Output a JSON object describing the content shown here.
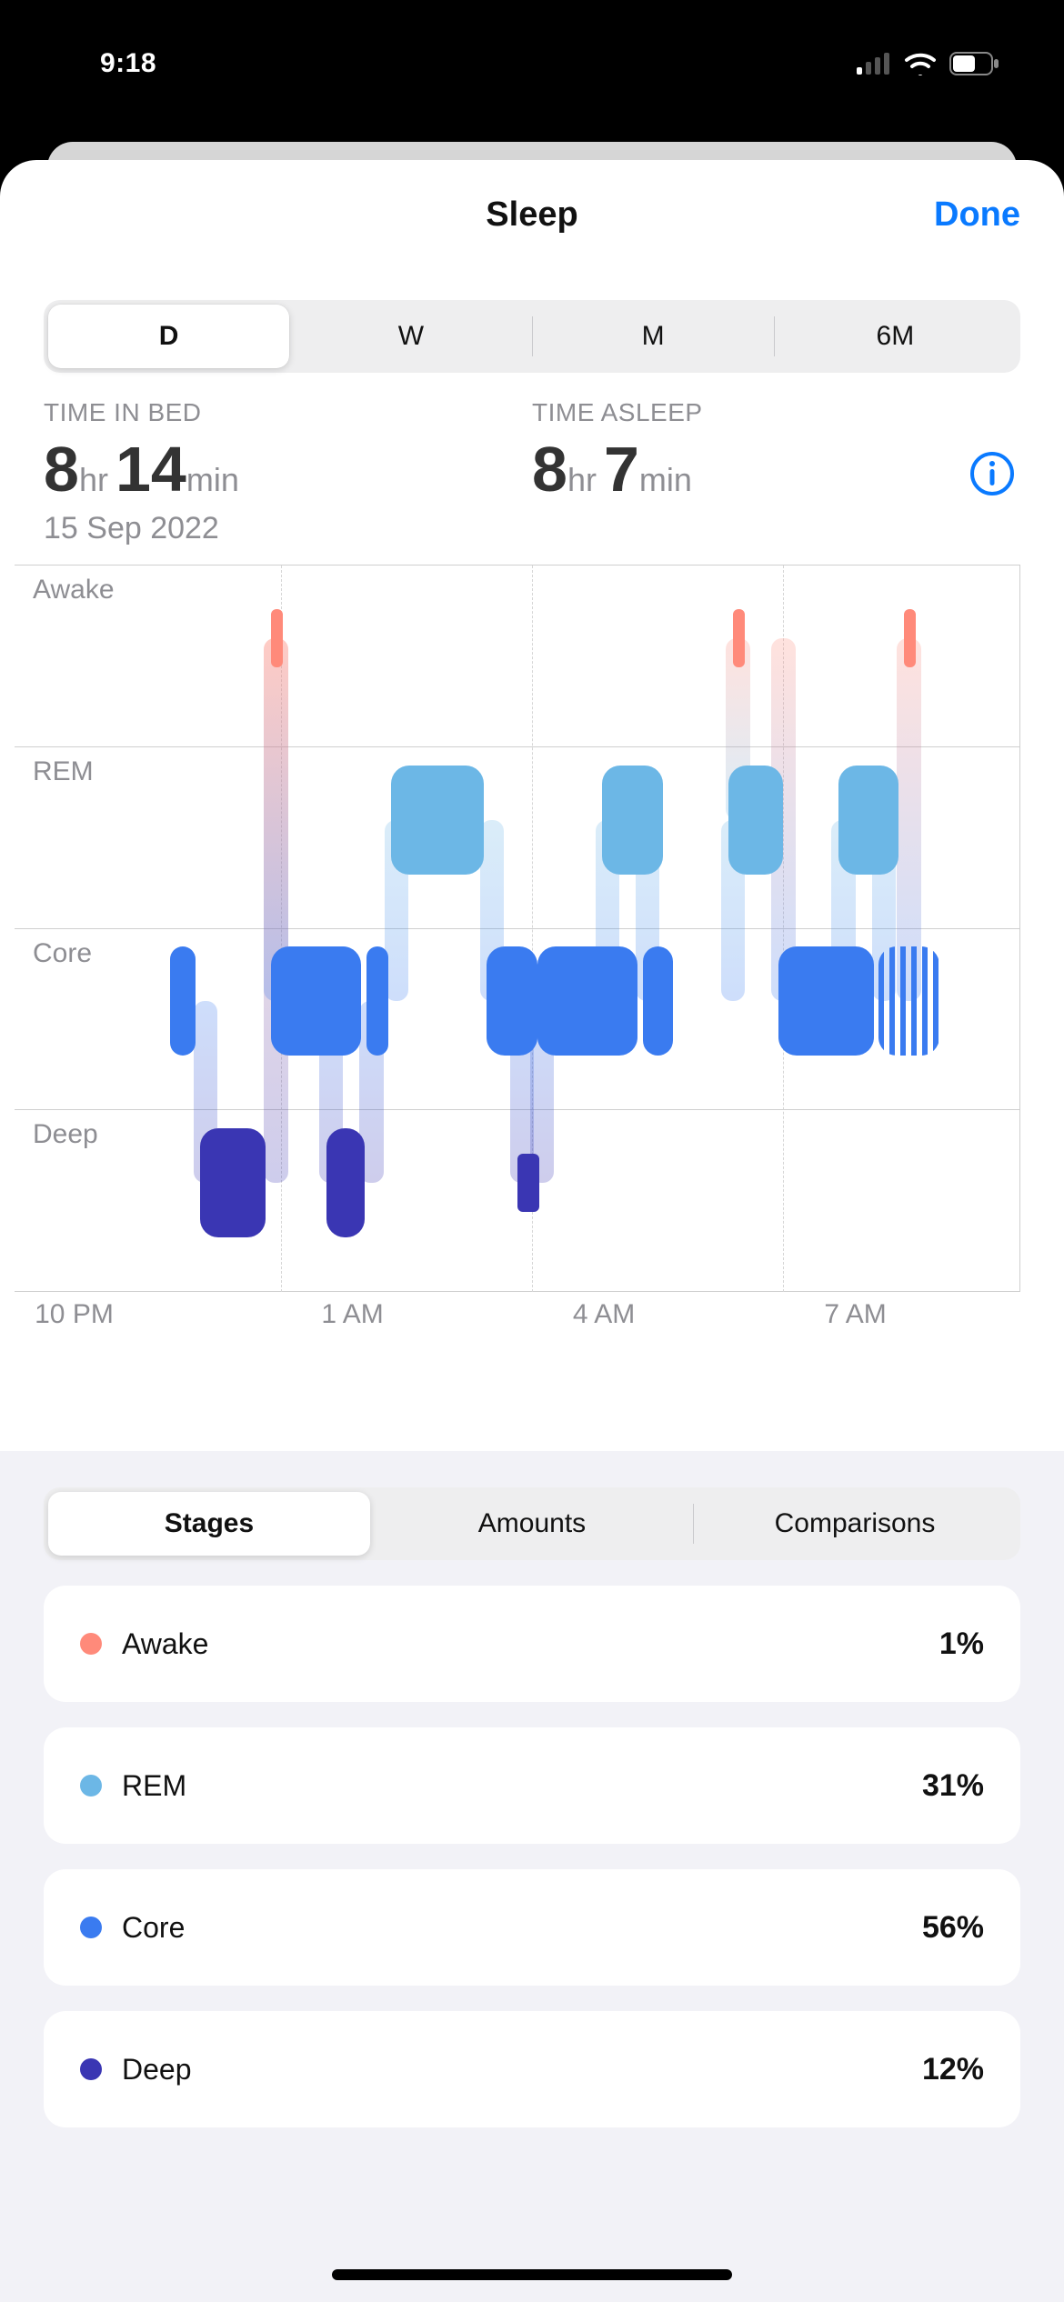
{
  "status": {
    "time": "9:18"
  },
  "header": {
    "title": "Sleep",
    "done": "Done"
  },
  "range_segment": {
    "options": [
      "D",
      "W",
      "M",
      "6M"
    ],
    "selected_index": 0
  },
  "summary": {
    "in_bed": {
      "label": "TIME IN BED",
      "hours": "8",
      "hr_unit": "hr",
      "minutes": "14",
      "min_unit": "min"
    },
    "asleep": {
      "label": "TIME ASLEEP",
      "hours": "8",
      "hr_unit": "hr",
      "minutes": "7",
      "min_unit": "min"
    },
    "date": "15 Sep 2022"
  },
  "chart": {
    "stage_labels": [
      "Awake",
      "REM",
      "Core",
      "Deep"
    ],
    "x_ticks": [
      {
        "label": "10 PM",
        "pos_pct": 2.0
      },
      {
        "label": "1 AM",
        "pos_pct": 30.5
      },
      {
        "label": "4 AM",
        "pos_pct": 55.5
      },
      {
        "label": "7 AM",
        "pos_pct": 80.5
      }
    ],
    "x_gridlines_pct": [
      26.5,
      51.5,
      76.5
    ],
    "colors": {
      "awake": "#ff8a7a",
      "rem": "#6cb7e6",
      "core": "#3a7bf0",
      "deep": "#3a36b3",
      "light_blue": "#cfe4f7"
    },
    "row_height_pct": 25,
    "bar_thickness_pct": 15,
    "bars": [
      {
        "stage": "core",
        "start_pct": 15.5,
        "width_pct": 2.5
      },
      {
        "stage": "deep",
        "start_pct": 18.5,
        "width_pct": 6.5
      },
      {
        "stage": "awake",
        "start_pct": 25.5,
        "width_pct": 1.2,
        "thin": true
      },
      {
        "stage": "core",
        "start_pct": 25.5,
        "width_pct": 9.0
      },
      {
        "stage": "deep",
        "start_pct": 31.0,
        "width_pct": 3.8
      },
      {
        "stage": "core",
        "start_pct": 35.0,
        "width_pct": 2.2
      },
      {
        "stage": "rem",
        "start_pct": 37.5,
        "width_pct": 9.2
      },
      {
        "stage": "core",
        "start_pct": 47.0,
        "width_pct": 5.0
      },
      {
        "stage": "deep",
        "start_pct": 50.0,
        "width_pct": 2.2,
        "thin": true
      },
      {
        "stage": "core",
        "start_pct": 52.0,
        "width_pct": 10.0
      },
      {
        "stage": "rem",
        "start_pct": 58.5,
        "width_pct": 6.0
      },
      {
        "stage": "core",
        "start_pct": 62.5,
        "width_pct": 3.0
      },
      {
        "stage": "awake",
        "start_pct": 71.5,
        "width_pct": 1.2,
        "thin": true
      },
      {
        "stage": "rem",
        "start_pct": 71.0,
        "width_pct": 5.5
      },
      {
        "stage": "core",
        "start_pct": 76.0,
        "width_pct": 9.5
      },
      {
        "stage": "rem",
        "start_pct": 82.0,
        "width_pct": 6.0
      },
      {
        "stage": "awake",
        "start_pct": 88.5,
        "width_pct": 1.2,
        "thin": true
      },
      {
        "stage": "core",
        "start_pct": 86.0,
        "width_pct": 6.0,
        "striped": true
      }
    ]
  },
  "detail_segment": {
    "options": [
      "Stages",
      "Amounts",
      "Comparisons"
    ],
    "selected_index": 0
  },
  "stages": [
    {
      "name": "Awake",
      "pct": "1%",
      "color": "#ff8a7a"
    },
    {
      "name": "REM",
      "pct": "31%",
      "color": "#6cb7e6"
    },
    {
      "name": "Core",
      "pct": "56%",
      "color": "#3a7bf0"
    },
    {
      "name": "Deep",
      "pct": "12%",
      "color": "#3a36b3"
    }
  ]
}
